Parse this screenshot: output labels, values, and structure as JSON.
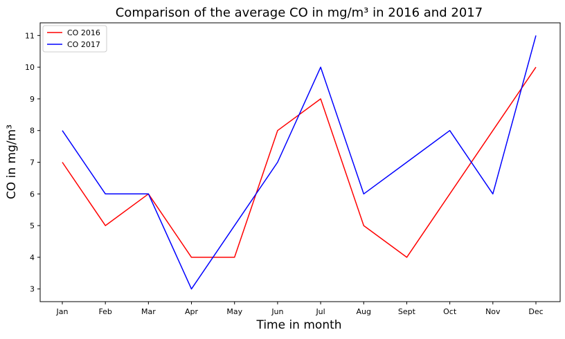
{
  "chart_data": {
    "type": "line",
    "title": "Comparison of the average CO in mg/m³ in 2016 and 2017",
    "xlabel": "Time in month",
    "ylabel": "CO in mg/m³",
    "categories": [
      "Jan",
      "Feb",
      "Mar",
      "Apr",
      "May",
      "Jun",
      "Jul",
      "Aug",
      "Sept",
      "Oct",
      "Nov",
      "Dec"
    ],
    "ylim": [
      2.6,
      11.4
    ],
    "yticks": [
      3,
      4,
      5,
      6,
      7,
      8,
      9,
      10,
      11
    ],
    "grid": false,
    "legend_position": "top-left",
    "series": [
      {
        "name": "CO 2016",
        "color": "#ff0000",
        "values": [
          7,
          5,
          6,
          4,
          4,
          8,
          9,
          5,
          4,
          6,
          8,
          10
        ]
      },
      {
        "name": "CO 2017",
        "color": "#0000ff",
        "values": [
          8,
          6,
          6,
          3,
          5,
          7,
          10,
          6,
          7,
          8,
          6,
          11
        ]
      }
    ]
  }
}
